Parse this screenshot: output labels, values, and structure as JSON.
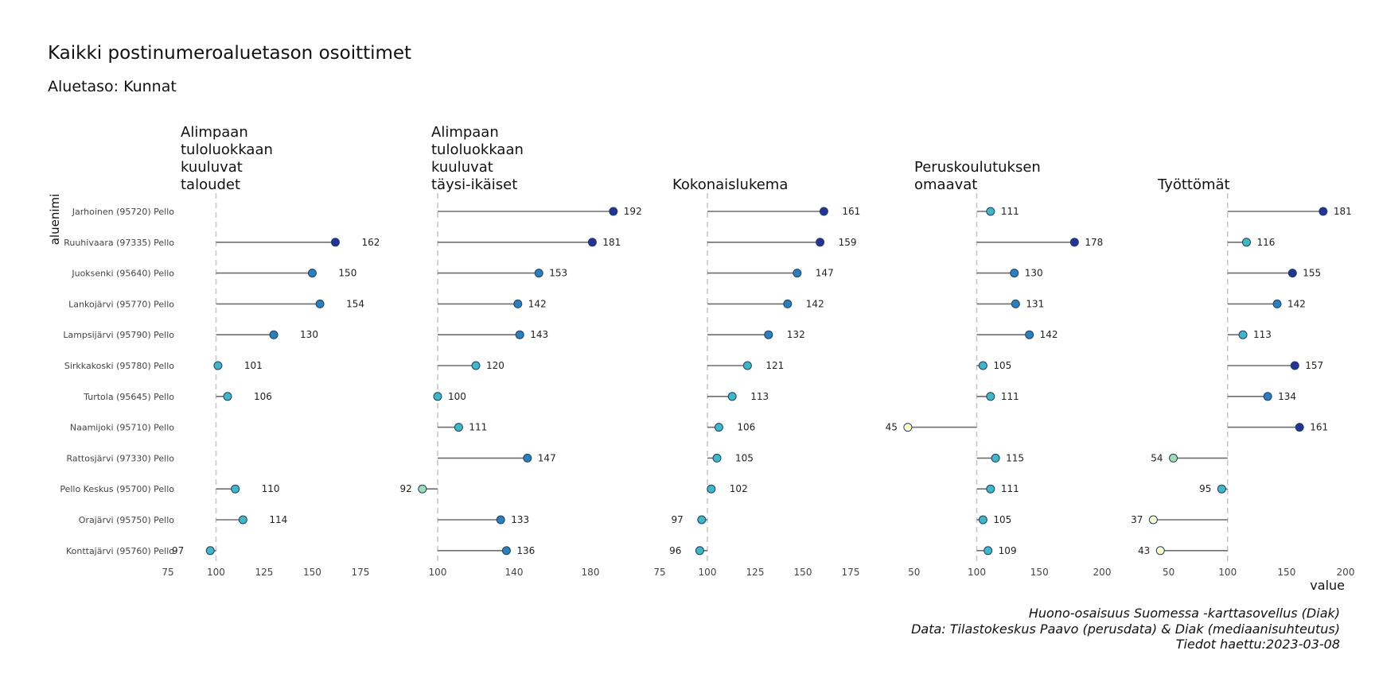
{
  "title": "Kaikki postinumeroaluetason osoittimet",
  "subtitle": "Aluetaso: Kunnat",
  "caption": [
    "Huono-osaisuus Suomessa -karttasovellus (Diak)",
    "Data: Tilastokeskus Paavo (perusdata) & Diak (mediaanisuhteutus)",
    "Tiedot haettu:2023-03-08"
  ],
  "chart_data": {
    "type": "lollipop",
    "y_axis_label": "aluenimi",
    "x_axis_label": "value",
    "reference_value": 100,
    "categories": [
      "Jarhoinen (95720) Pello",
      "Ruuhivaara (97335) Pello",
      "Juoksenki (95640) Pello",
      "Lankojärvi (95770) Pello",
      "Lampsijärvi (95790) Pello",
      "Sirkkakoski (95780) Pello",
      "Turtola (95645) Pello",
      "Naamijoki (95710) Pello",
      "Rattosjärvi (97330) Pello",
      "Pello Keskus (95700) Pello",
      "Orajärvi (95750) Pello",
      "Konttajärvi (95760) Pello"
    ],
    "facets": [
      {
        "title_lines": [
          "Alimpaan",
          "tuloluokkaan",
          "kuuluvat",
          "taloudet"
        ],
        "xlim": [
          75,
          180
        ],
        "ticks": [
          75,
          100,
          125,
          150,
          175
        ],
        "values": [
          null,
          162,
          150,
          154,
          130,
          101,
          106,
          null,
          null,
          110,
          114,
          97
        ]
      },
      {
        "title_lines": [
          "Alimpaan",
          "tuloluokkaan",
          "kuuluvat",
          "täysi-ikäiset"
        ],
        "xlim": [
          90,
          195
        ],
        "ticks": [
          100,
          140,
          180
        ],
        "values": [
          192,
          181,
          153,
          142,
          143,
          120,
          100,
          111,
          147,
          92,
          133,
          136
        ]
      },
      {
        "title_lines": [
          "Kokonaislukema"
        ],
        "xlim": [
          75,
          180
        ],
        "ticks": [
          75,
          100,
          125,
          150,
          175
        ],
        "values": [
          161,
          159,
          147,
          142,
          132,
          121,
          113,
          106,
          105,
          102,
          97,
          96
        ]
      },
      {
        "title_lines": [
          "Peruskoulutuksen",
          "omaavat"
        ],
        "xlim": [
          40,
          200
        ],
        "ticks": [
          50,
          100,
          150,
          200
        ],
        "values": [
          111,
          178,
          130,
          131,
          142,
          105,
          111,
          45,
          115,
          111,
          105,
          109
        ]
      },
      {
        "title_lines": [
          "Työttömät"
        ],
        "xlim": [
          30,
          200
        ],
        "ticks": [
          50,
          100,
          150,
          200
        ],
        "values": [
          181,
          116,
          155,
          142,
          113,
          157,
          134,
          161,
          54,
          95,
          37,
          43
        ]
      }
    ],
    "colors": {
      "stem": "#6e6e6e",
      "reference_line": "#c8c8c8",
      "low": "#ffffcc",
      "mid_low": "#a1dab4",
      "mid": "#41b6c4",
      "mid_high": "#2c7fb8",
      "high": "#253494"
    }
  }
}
